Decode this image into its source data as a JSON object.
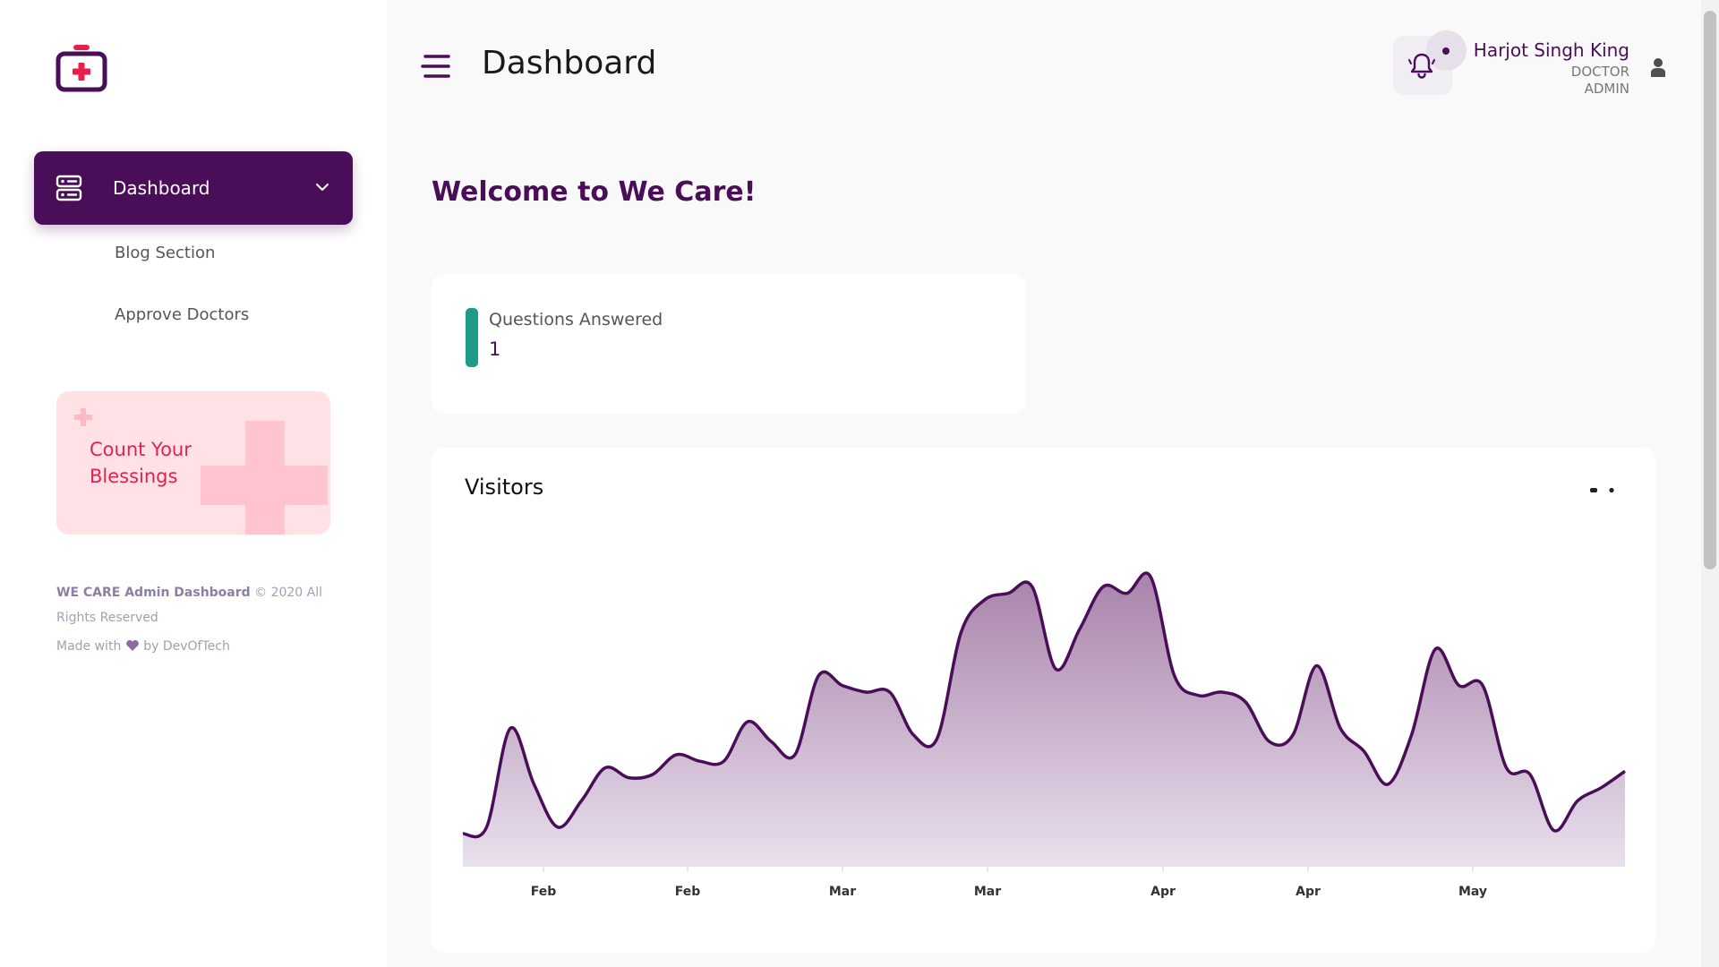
{
  "brand": {
    "accent": "#4a0d57",
    "logo_icon": "medical-kit-icon"
  },
  "sidebar": {
    "active_item": {
      "label": "Dashboard",
      "icon": "server-icon"
    },
    "items": [
      {
        "label": "Blog Section"
      },
      {
        "label": "Approve Doctors"
      }
    ],
    "promo": {
      "text": "Count Your Blessings"
    },
    "footer": {
      "brand": "WE CARE Admin Dashboard",
      "copyright": "© 2020 All Rights Reserved",
      "made_prefix": "Made with",
      "made_suffix": "by DevOfTech"
    }
  },
  "header": {
    "title": "Dashboard",
    "user": {
      "name": "Harjot Singh King",
      "role1": "DOCTOR",
      "role2": "ADMIN"
    }
  },
  "main": {
    "welcome": "Welcome to We Care!",
    "stat": {
      "label": "Questions Answered",
      "value": "1",
      "color": "#1e9c85"
    },
    "chart_title": "Visitors"
  },
  "chart_data": {
    "type": "area",
    "title": "Visitors",
    "xlabel": "",
    "ylabel": "",
    "x_tick_labels": [
      "Feb",
      "Feb",
      "Mar",
      "Mar",
      "Apr",
      "Apr",
      "May"
    ],
    "values": [
      10,
      12,
      42,
      25,
      12,
      20,
      30,
      27,
      28,
      34,
      32,
      32,
      44,
      38,
      34,
      58,
      55,
      53,
      53,
      40,
      39,
      71,
      81,
      83,
      85,
      60,
      72,
      85,
      83,
      88,
      58,
      52,
      53,
      50,
      38,
      40,
      61,
      42,
      35,
      25,
      40,
      66,
      55,
      55,
      30,
      28,
      11,
      20,
      24,
      29
    ],
    "series": [
      {
        "values_ref": "values"
      }
    ],
    "grid": false
  }
}
